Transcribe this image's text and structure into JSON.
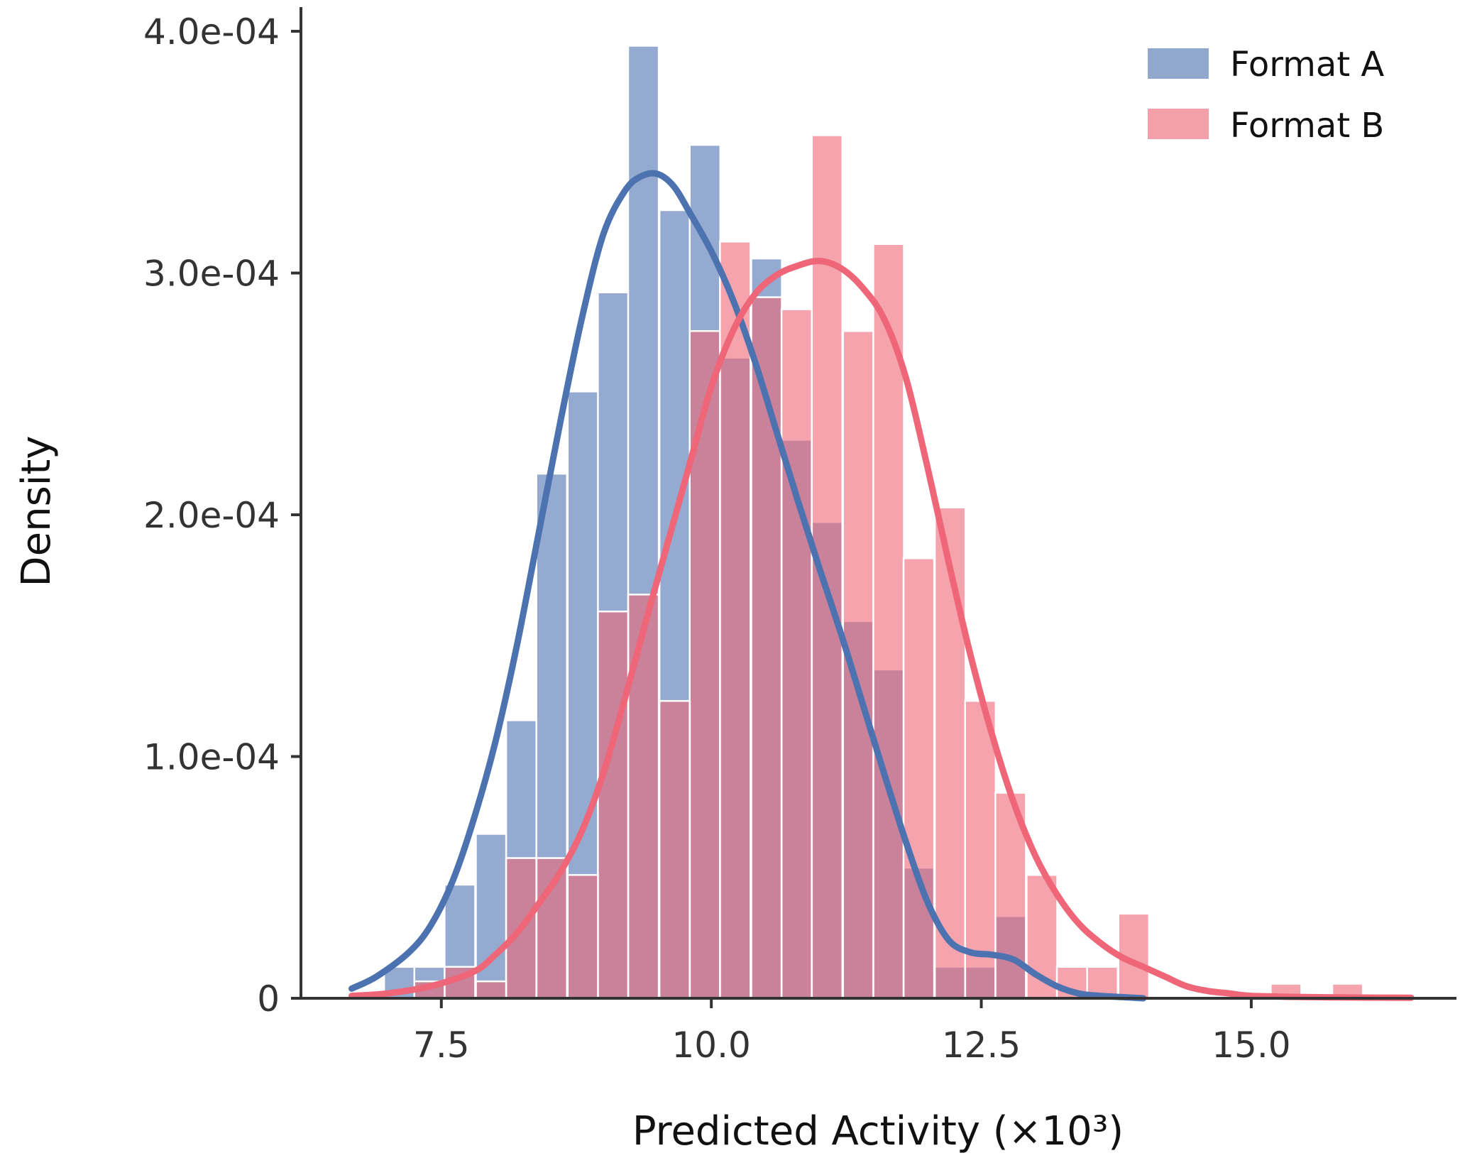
{
  "chart_data": {
    "type": "histogram",
    "xlabel": "Predicted Activity (×10³)",
    "ylabel": "Density",
    "xlim": [
      6.2,
      16.9
    ],
    "ylim": [
      0,
      0.00041
    ],
    "xticks": [
      7.5,
      10.0,
      12.5,
      15.0
    ],
    "xtick_labels": [
      "7.5",
      "10.0",
      "12.5",
      "15.0"
    ],
    "yticks": [
      0,
      0.0001,
      0.0002,
      0.0003,
      0.0004
    ],
    "ytick_labels": [
      "0",
      "1.0e-04",
      "2.0e-04",
      "3.0e-04",
      "4.0e-04"
    ],
    "bin_width": 0.2833,
    "legend_position": "top-right",
    "series": [
      {
        "name": "Format A",
        "color": "#4c72b0",
        "bin_starts": [
          6.97,
          7.25,
          7.53,
          7.82,
          8.1,
          8.38,
          8.67,
          8.95,
          9.23,
          9.52,
          9.8,
          10.08,
          10.37,
          10.65,
          10.93,
          11.22,
          11.5,
          11.78,
          12.07,
          12.35,
          12.63
        ],
        "values": [
          1.3e-05,
          1.3e-05,
          4.7e-05,
          6.8e-05,
          0.000115,
          0.000217,
          0.000251,
          0.000292,
          0.000394,
          0.000326,
          0.000353,
          0.000265,
          0.000306,
          0.000231,
          0.000197,
          0.000156,
          0.000136,
          5.4e-05,
          1.3e-05,
          1.3e-05,
          3.4e-05
        ],
        "kde_x": [
          6.67,
          6.9,
          7.2,
          7.4,
          7.6,
          7.8,
          8.0,
          8.2,
          8.4,
          8.6,
          8.8,
          9.0,
          9.2,
          9.35,
          9.5,
          9.65,
          9.8,
          10.0,
          10.2,
          10.4,
          10.6,
          10.8,
          11.0,
          11.2,
          11.4,
          11.6,
          11.8,
          12.0,
          12.2,
          12.4,
          12.6,
          12.8,
          13.0,
          13.2,
          13.4,
          13.6,
          13.8,
          14.0
        ],
        "kde_y": [
          4e-06,
          9e-06,
          1.9e-05,
          3e-05,
          4.8e-05,
          7.4e-05,
          0.000106,
          0.000146,
          0.000192,
          0.000238,
          0.000281,
          0.000316,
          0.000334,
          0.00034,
          0.000341,
          0.000336,
          0.000325,
          0.000309,
          0.000289,
          0.000264,
          0.000235,
          0.000206,
          0.000178,
          0.000151,
          0.000122,
          9.3e-05,
          6.5e-05,
          4e-05,
          2.4e-05,
          1.9e-05,
          1.8e-05,
          1.6e-05,
          1e-05,
          5e-06,
          2e-06,
          1e-06,
          5e-07,
          0.0
        ]
      },
      {
        "name": "Format B",
        "color": "#ee6677",
        "bin_starts": [
          7.25,
          7.53,
          7.82,
          8.1,
          8.38,
          8.67,
          8.95,
          9.23,
          9.52,
          9.8,
          10.08,
          10.37,
          10.65,
          10.93,
          11.22,
          11.5,
          11.78,
          12.07,
          12.35,
          12.63,
          12.92,
          13.2,
          13.48,
          13.77,
          14.05,
          14.33,
          14.62,
          14.9,
          15.18,
          15.47,
          15.75,
          16.03
        ],
        "values": [
          7e-06,
          1.3e-05,
          7e-06,
          5.8e-05,
          5.8e-05,
          5.1e-05,
          0.00016,
          0.000167,
          0.000123,
          0.000276,
          0.000313,
          0.00029,
          0.000285,
          0.000357,
          0.000276,
          0.000312,
          0.000182,
          0.000203,
          0.000123,
          8.5e-05,
          5.1e-05,
          1.3e-05,
          1.3e-05,
          3.5e-05,
          0.0,
          0.0,
          0.0,
          0.0,
          6e-06,
          0.0,
          6e-06,
          0.0
        ],
        "kde_x": [
          6.67,
          7.0,
          7.4,
          7.8,
          8.0,
          8.2,
          8.4,
          8.6,
          8.8,
          9.0,
          9.2,
          9.4,
          9.6,
          9.8,
          10.0,
          10.2,
          10.4,
          10.6,
          10.8,
          11.0,
          11.2,
          11.4,
          11.6,
          11.8,
          12.0,
          12.2,
          12.4,
          12.6,
          12.8,
          13.0,
          13.2,
          13.4,
          13.6,
          13.8,
          14.0,
          14.2,
          14.4,
          14.6,
          14.8,
          15.0,
          15.5,
          16.0,
          16.48
        ],
        "kde_y": [
          1e-06,
          2e-06,
          5e-06,
          1.1e-05,
          1.8e-05,
          2.7e-05,
          3.9e-05,
          5.2e-05,
          6.9e-05,
          9.3e-05,
          0.000124,
          0.000157,
          0.000189,
          0.000221,
          0.000253,
          0.000276,
          0.000291,
          0.000299,
          0.000303,
          0.000305,
          0.000302,
          0.000294,
          0.000281,
          0.000257,
          0.00022,
          0.00018,
          0.000142,
          0.000109,
          8.1e-05,
          5.9e-05,
          4.3e-05,
          3.1e-05,
          2.3e-05,
          1.7e-05,
          1.3e-05,
          9e-06,
          5e-06,
          3e-06,
          2e-06,
          1e-06,
          5e-07,
          3e-07,
          2e-07
        ]
      }
    ]
  }
}
